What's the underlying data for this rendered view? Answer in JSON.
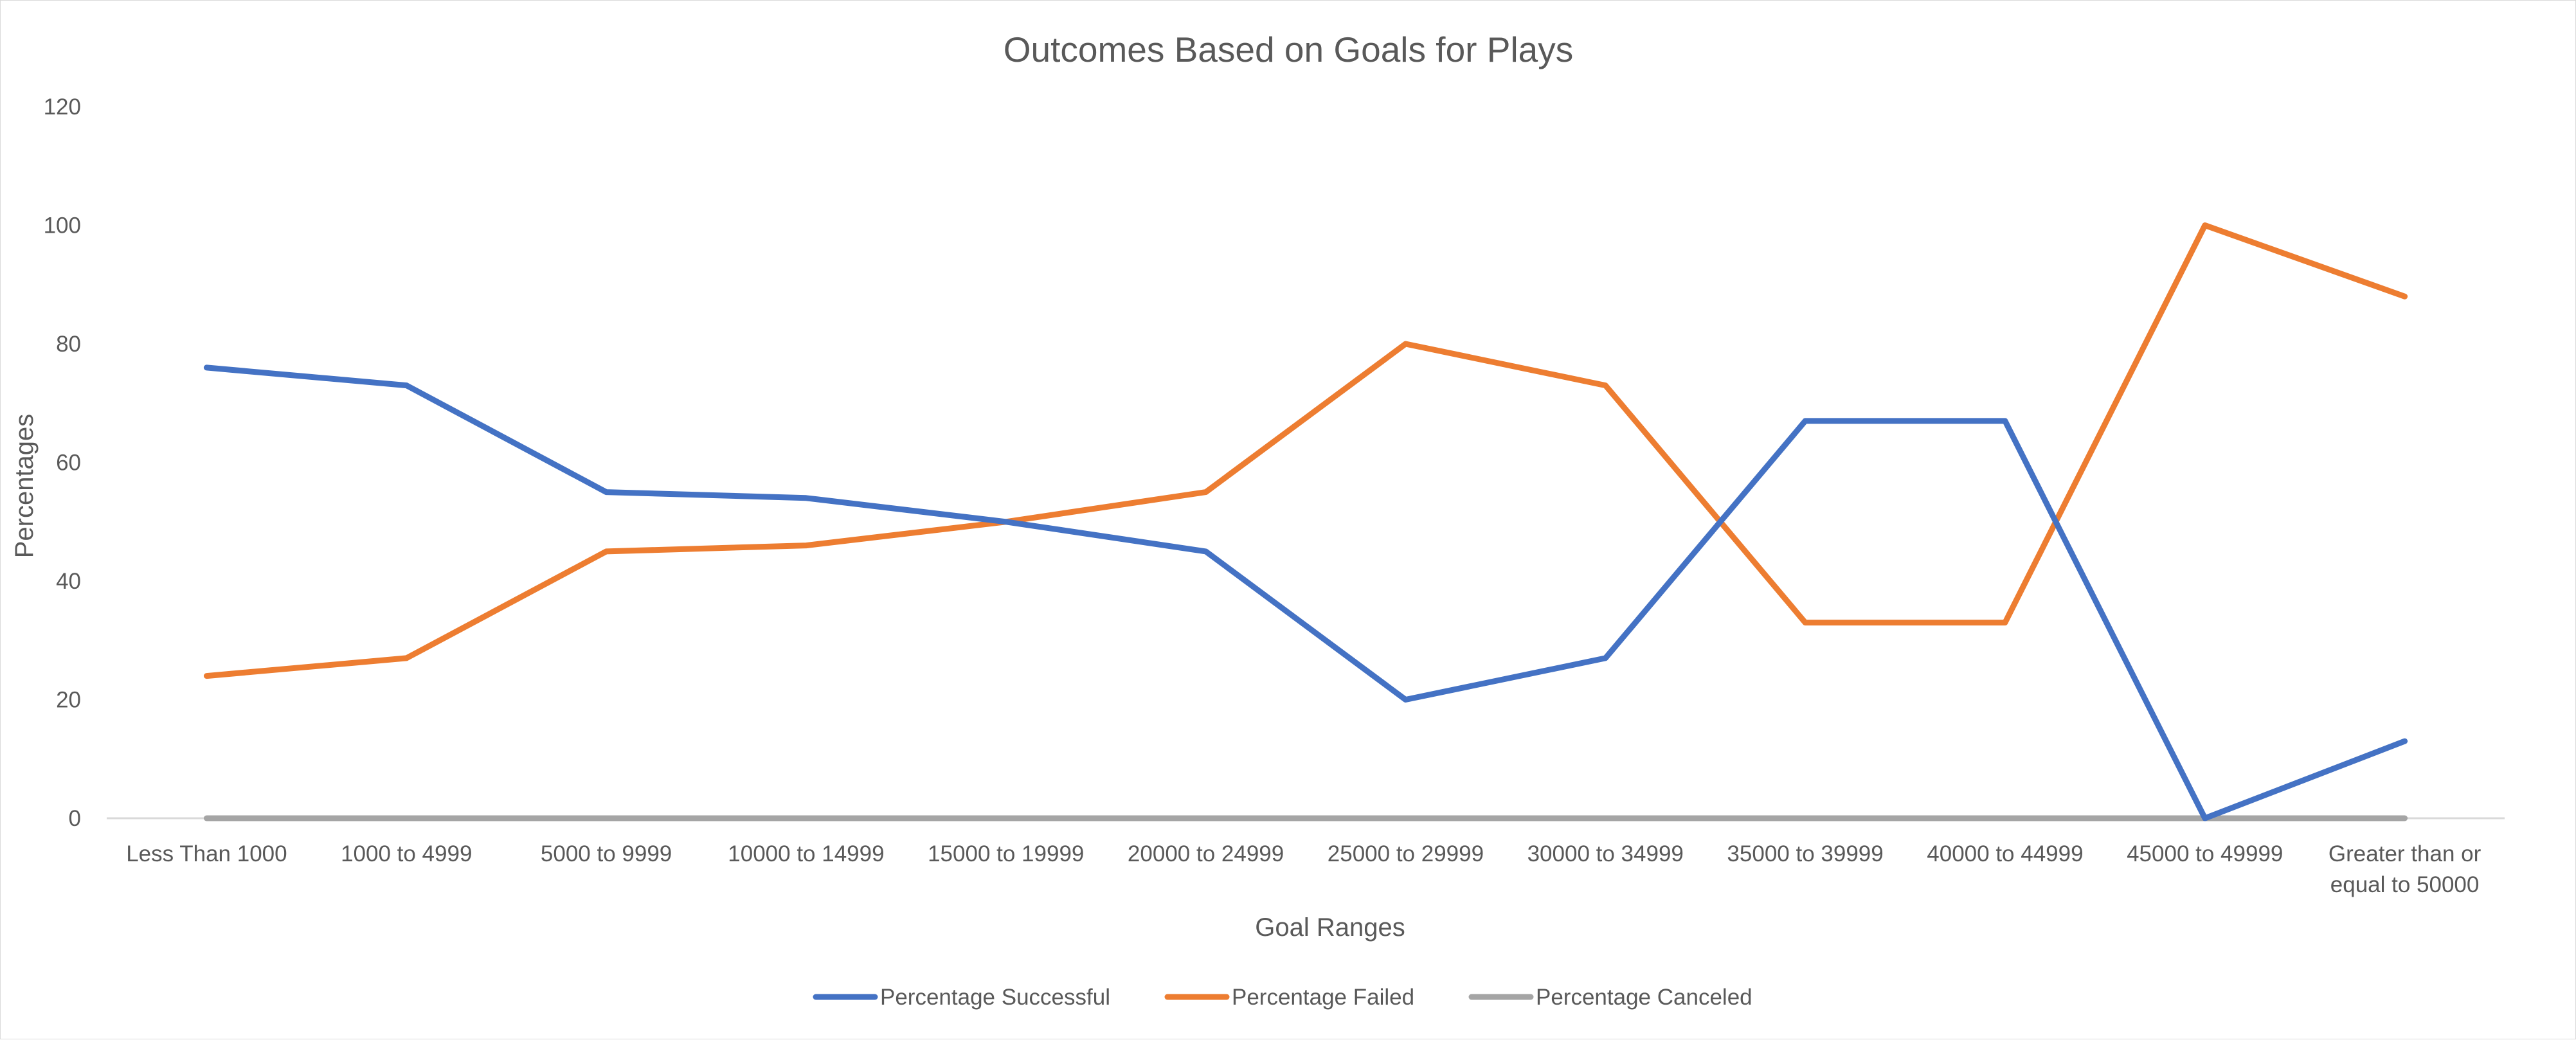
{
  "chart_data": {
    "type": "line",
    "title": "Outcomes Based on Goals for Plays",
    "xlabel": "Goal Ranges",
    "ylabel": "Percentages",
    "ylim": [
      0,
      120
    ],
    "yticks": [
      0,
      20,
      40,
      60,
      80,
      100,
      120
    ],
    "grid": false,
    "legend": "bottom",
    "categories": [
      "Less Than  1000",
      "1000 to 4999",
      "5000 to 9999",
      "10000 to 14999",
      "15000 to 19999",
      "20000 to 24999",
      "25000 to 29999",
      "30000 to 34999",
      "35000 to 39999",
      "40000 to 44999",
      "45000 to 49999",
      "Greater than or equal to  50000"
    ],
    "series": [
      {
        "name": "Percentage Successful",
        "color": "#4472C4",
        "values": [
          76,
          73,
          55,
          54,
          50,
          45,
          20,
          27,
          67,
          67,
          0,
          13
        ]
      },
      {
        "name": "Percentage Failed",
        "color": "#ED7D31",
        "values": [
          24,
          27,
          45,
          46,
          50,
          55,
          80,
          73,
          33,
          33,
          100,
          88
        ]
      },
      {
        "name": "Percentage Canceled",
        "color": "#A5A5A5",
        "values": [
          0,
          0,
          0,
          0,
          0,
          0,
          0,
          0,
          0,
          0,
          0,
          0
        ]
      }
    ]
  }
}
